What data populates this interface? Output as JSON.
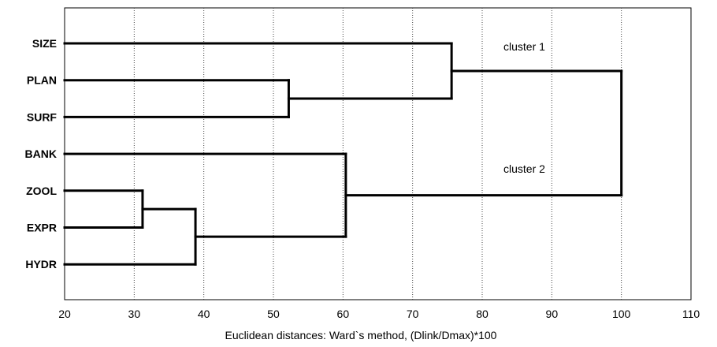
{
  "chart_data": {
    "type": "dendrogram",
    "title": "",
    "xlabel": "Euclidean distances: Ward`s method, (Dlink/Dmax)*100",
    "ylabel": "",
    "xlim": [
      20,
      110
    ],
    "x_ticks": [
      "20",
      "30",
      "40",
      "50",
      "60",
      "70",
      "80",
      "90",
      "100",
      "110"
    ],
    "grid": true,
    "leaves": [
      "SIZE",
      "PLAN",
      "SURF",
      "BANK",
      "ZOOL",
      "EXPR",
      "HYDR"
    ],
    "merges": [
      {
        "children": [
          "ZOOL",
          "EXPR"
        ],
        "distance": 31.2
      },
      {
        "children": [
          "ZOOL+EXPR",
          "HYDR"
        ],
        "distance": 38.8
      },
      {
        "children": [
          "PLAN",
          "SURF"
        ],
        "distance": 52.2
      },
      {
        "children": [
          "BANK",
          "ZOOL+EXPR+HYDR"
        ],
        "distance": 60.4
      },
      {
        "children": [
          "SIZE",
          "PLAN+SURF"
        ],
        "distance": 75.6
      },
      {
        "children": [
          "SIZE+PLAN+SURF",
          "BANK+ZOOL+EXPR+HYDR"
        ],
        "distance": 100
      }
    ],
    "annotations": [
      "cluster 1",
      "cluster 2"
    ]
  }
}
